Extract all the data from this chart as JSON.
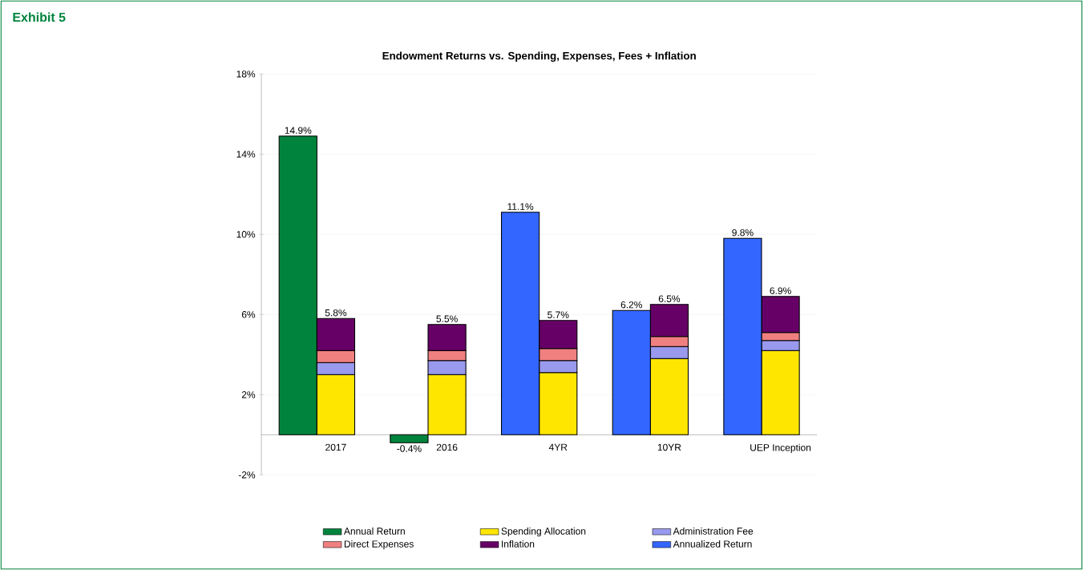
{
  "chart_data": {
    "type": "bar",
    "title": "Endowment Returns vs. Spending, Expenses, Fees + Inflation",
    "annotations": [
      "Exhibit 5",
      {
        "text": "5.8%",
        "x": "2017",
        "y": 5.8
      },
      {
        "text": "5.5%",
        "x": "2016",
        "y": 5.5
      },
      {
        "text": "5.7%",
        "x": "4YR",
        "y": 5.7
      },
      {
        "text": "6.5%",
        "x": "10YR",
        "y": 6.5
      },
      {
        "text": "6.9%",
        "x": "UEP Inception",
        "y": 6.9
      }
    ],
    "categories": [
      "2017",
      "2016",
      "4YR",
      "10YR",
      "UEP Inception"
    ],
    "series": [
      {
        "name": "Annual Return",
        "color": "#00843d",
        "values": [
          14.9,
          -0.4,
          null,
          null,
          null
        ],
        "value_labels": [
          "14.9%",
          "-0.4%",
          null,
          null,
          null
        ]
      },
      {
        "name": "Spending Allocation",
        "color": "#ffe600",
        "values": [
          3.0,
          3.0,
          3.1,
          3.8,
          4.2
        ],
        "base": [
          0,
          0,
          0,
          0,
          0
        ]
      },
      {
        "name": "Administration Fee",
        "color": "#9999ee",
        "values": [
          0.6,
          0.7,
          0.6,
          0.6,
          0.5
        ],
        "base": [
          3.0,
          3.0,
          3.1,
          3.8,
          4.2
        ]
      },
      {
        "name": "Direct Expenses",
        "color": "#f08080",
        "values": [
          0.6,
          0.5,
          0.6,
          0.5,
          0.4
        ],
        "base": [
          3.6,
          3.7,
          3.7,
          4.4,
          4.7
        ]
      },
      {
        "name": "Inflation",
        "color": "#660066",
        "values": [
          1.6,
          1.3,
          1.4,
          1.6,
          1.8
        ],
        "base": [
          4.2,
          4.2,
          4.3,
          4.9,
          5.1
        ]
      },
      {
        "name": "Annualized Return",
        "color": "#3366ff",
        "values": [
          null,
          null,
          11.1,
          6.2,
          9.8
        ],
        "value_labels": [
          null,
          null,
          "11.1%",
          "6.2%",
          "9.8%"
        ]
      }
    ],
    "ylim": [
      -2,
      18
    ],
    "yticks": [
      {
        "value": -2,
        "label": "-2%"
      },
      {
        "value": 2,
        "label": "2%"
      },
      {
        "value": 6,
        "label": "6%"
      },
      {
        "value": 10,
        "label": "10%"
      },
      {
        "value": 14,
        "label": "14%"
      },
      {
        "value": 18,
        "label": "18%"
      }
    ],
    "grid": "y",
    "legend": "bottom"
  }
}
